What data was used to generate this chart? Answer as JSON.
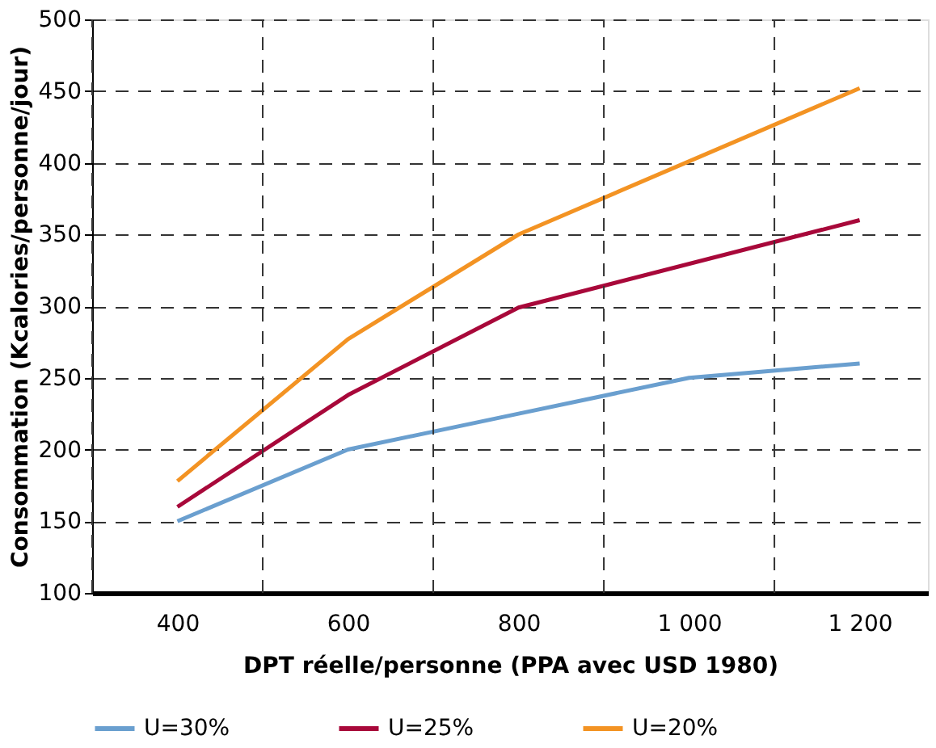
{
  "chart_data": {
    "type": "line",
    "xlabel": "DPT réelle/personne (PPA avec USD 1980)",
    "ylabel": "Consommation (Kcalories/personne/jour)",
    "series": [
      {
        "name": "U=30%",
        "color": "#6a9fcf",
        "x": [
          400,
          600,
          800,
          1000,
          1200
        ],
        "values": [
          150,
          200,
          225,
          250,
          260
        ]
      },
      {
        "name": "U=25%",
        "color": "#a8083a",
        "x": [
          400,
          600,
          800,
          1200
        ],
        "values": [
          160,
          238,
          299,
          360
        ]
      },
      {
        "name": "U=20%",
        "color": "#f39323",
        "x": [
          400,
          600,
          800,
          1200
        ],
        "values": [
          178,
          277,
          350,
          452
        ]
      }
    ],
    "xlim": [
      300,
      1280
    ],
    "xticks": [
      {
        "value": 300,
        "label": null
      },
      {
        "value": 400,
        "label": "400"
      },
      {
        "value": 500,
        "label": null
      },
      {
        "value": 600,
        "label": "600"
      },
      {
        "value": 700,
        "label": null
      },
      {
        "value": 800,
        "label": "800"
      },
      {
        "value": 900,
        "label": null
      },
      {
        "value": 1000,
        "label": "1 000"
      },
      {
        "value": 1100,
        "label": null
      },
      {
        "value": 1200,
        "label": "1 200"
      }
    ],
    "ylim": [
      100,
      500
    ],
    "yticks": [
      100,
      150,
      200,
      250,
      300,
      350,
      400,
      450,
      500
    ],
    "grid": true,
    "legend": "bottom",
    "line_style": "solid",
    "marker": "none"
  }
}
